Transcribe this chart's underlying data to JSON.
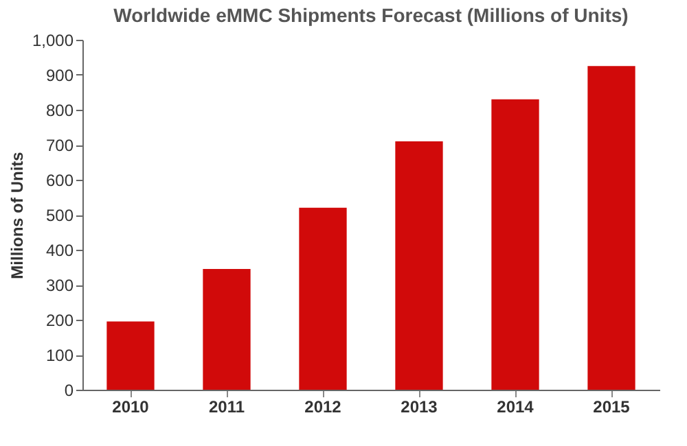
{
  "chart_data": {
    "type": "bar",
    "title": "Worldwide eMMC Shipments Forecast (Millions of Units)",
    "ylabel": "Millions of Units",
    "categories": [
      "2010",
      "2011",
      "2012",
      "2013",
      "2014",
      "2015"
    ],
    "values": [
      195,
      345,
      520,
      710,
      830,
      925
    ],
    "color": "#d10a0a",
    "ylim": [
      0,
      1000
    ],
    "yticks": [
      0,
      100,
      200,
      300,
      400,
      500,
      600,
      700,
      800,
      900,
      {
        "value": 1000,
        "label": "1,000"
      }
    ],
    "grid": false
  }
}
